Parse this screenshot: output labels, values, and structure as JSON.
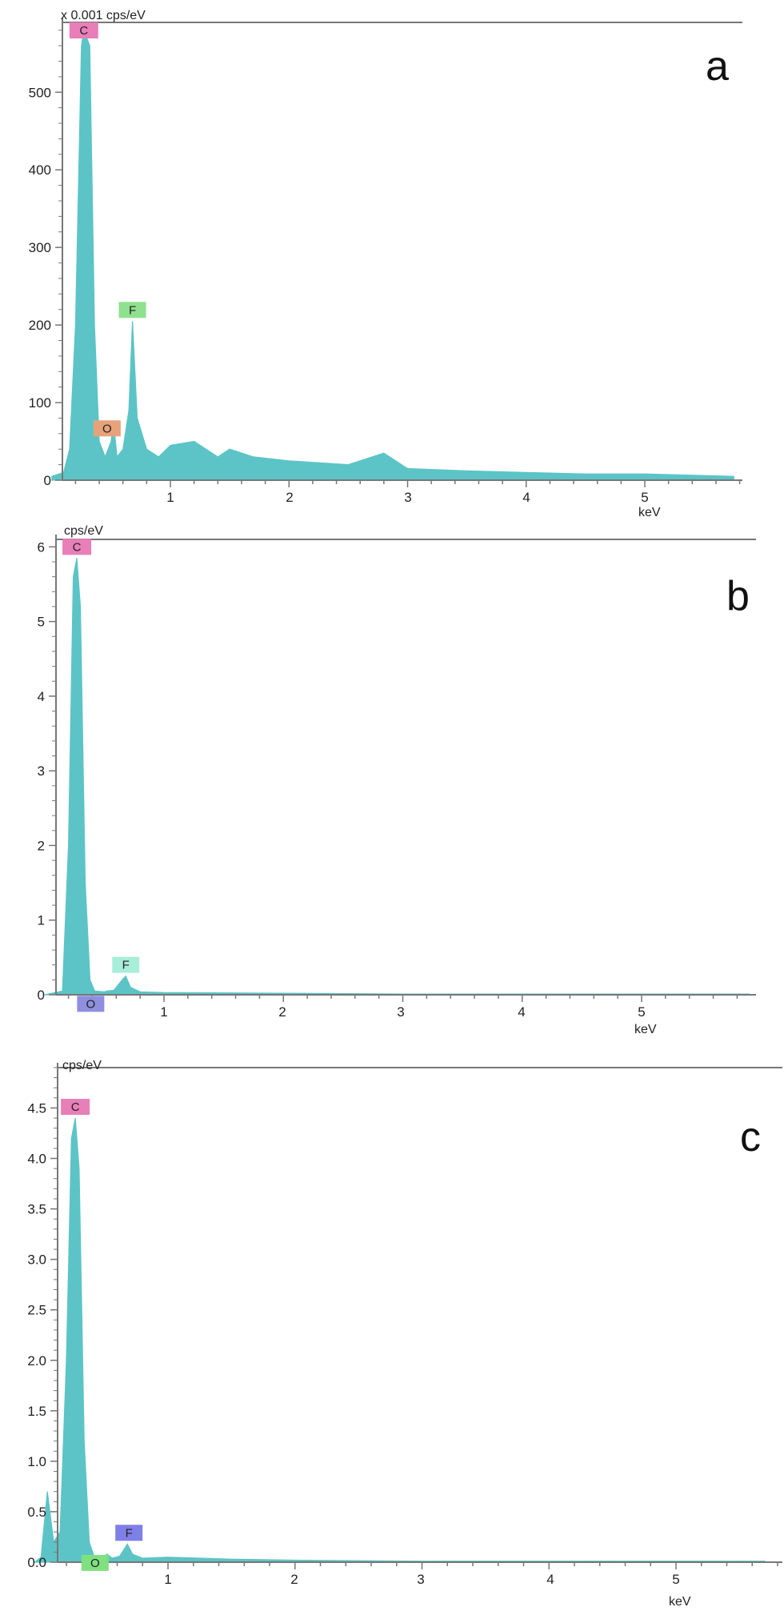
{
  "colors": {
    "spectrum": "#5cc4c6",
    "axis": "#777777",
    "label_C": "#e87fb8",
    "label_O_a": "#e8a27a",
    "label_F_a": "#8fe08f",
    "label_O_b": "#8f8fe0",
    "label_F_b": "#a8eed8",
    "label_O_c": "#7fe07f",
    "label_F_c": "#7f7fe8"
  },
  "chart_data": [
    {
      "type": "area",
      "panel": "a",
      "ylabel": "x 0.001 cps/eV",
      "xlabel": "keV",
      "xlim": [
        0.0,
        5.75
      ],
      "ylim": [
        0,
        590
      ],
      "xticks": [
        "1",
        "2",
        "3",
        "4",
        "5"
      ],
      "yticks": [
        "0",
        "100",
        "200",
        "300",
        "400",
        "500"
      ],
      "peaks": [
        {
          "element": "C",
          "x": 0.27,
          "y": 580
        },
        {
          "element": "O",
          "x": 0.52,
          "y": 75
        },
        {
          "element": "F",
          "x": 0.68,
          "y": 205
        }
      ],
      "x": [
        0.0,
        0.1,
        0.15,
        0.2,
        0.25,
        0.27,
        0.32,
        0.36,
        0.4,
        0.45,
        0.5,
        0.52,
        0.55,
        0.6,
        0.65,
        0.68,
        0.72,
        0.8,
        0.9,
        1.0,
        1.2,
        1.4,
        1.5,
        1.7,
        2.0,
        2.5,
        2.8,
        3.0,
        3.5,
        4.0,
        4.5,
        5.0,
        5.5,
        5.75
      ],
      "y": [
        5,
        10,
        40,
        200,
        560,
        580,
        560,
        200,
        50,
        30,
        50,
        75,
        30,
        40,
        90,
        205,
        80,
        40,
        30,
        45,
        50,
        30,
        40,
        30,
        25,
        20,
        35,
        15,
        12,
        10,
        8,
        8,
        6,
        5
      ]
    },
    {
      "type": "area",
      "panel": "b",
      "ylabel": "cps/eV",
      "xlabel": "keV",
      "xlim": [
        0.0,
        5.9
      ],
      "ylim": [
        0,
        6.1
      ],
      "xticks": [
        "1",
        "2",
        "3",
        "4",
        "5"
      ],
      "yticks": [
        "0",
        "1",
        "2",
        "3",
        "4",
        "5",
        "6"
      ],
      "peaks": [
        {
          "element": "C",
          "x": 0.27,
          "y": 5.85
        },
        {
          "element": "O",
          "x": 0.52,
          "y": 0.05
        },
        {
          "element": "F",
          "x": 0.68,
          "y": 0.25
        }
      ],
      "x": [
        0.0,
        0.15,
        0.2,
        0.24,
        0.27,
        0.3,
        0.34,
        0.38,
        0.42,
        0.5,
        0.52,
        0.58,
        0.65,
        0.68,
        0.72,
        0.8,
        1.0,
        2.0,
        3.0,
        4.0,
        5.0,
        5.9
      ],
      "y": [
        0.0,
        0.05,
        2.0,
        5.6,
        5.85,
        5.2,
        1.5,
        0.2,
        0.05,
        0.04,
        0.05,
        0.06,
        0.2,
        0.25,
        0.1,
        0.04,
        0.03,
        0.02,
        0.01,
        0.01,
        0.01,
        0.01
      ]
    },
    {
      "type": "area",
      "panel": "c",
      "ylabel": "cps/eV",
      "xlabel": "keV",
      "xlim": [
        -0.05,
        5.7
      ],
      "ylim": [
        0,
        4.9
      ],
      "xticks": [
        "1",
        "2",
        "3",
        "4",
        "5"
      ],
      "yticks": [
        "0.0",
        "0.5",
        "1.0",
        "1.5",
        "2.0",
        "2.5",
        "3.0",
        "3.5",
        "4.0",
        "4.5"
      ],
      "peaks": [
        {
          "element": "C",
          "x": 0.27,
          "y": 4.4
        },
        {
          "element": "O",
          "x": 0.52,
          "y": 0.08
        },
        {
          "element": "F",
          "x": 0.68,
          "y": 0.18
        }
      ],
      "x": [
        -0.05,
        0.0,
        0.05,
        0.1,
        0.15,
        0.2,
        0.24,
        0.27,
        0.3,
        0.34,
        0.38,
        0.42,
        0.48,
        0.52,
        0.56,
        0.62,
        0.68,
        0.72,
        0.8,
        1.0,
        1.5,
        2.0,
        3.0,
        4.0,
        5.0,
        5.7
      ],
      "y": [
        0.0,
        0.05,
        0.7,
        0.2,
        0.3,
        2.0,
        4.2,
        4.4,
        3.9,
        1.2,
        0.2,
        0.05,
        0.04,
        0.08,
        0.04,
        0.06,
        0.18,
        0.08,
        0.04,
        0.05,
        0.03,
        0.02,
        0.01,
        0.01,
        0.01,
        0.01
      ]
    }
  ]
}
